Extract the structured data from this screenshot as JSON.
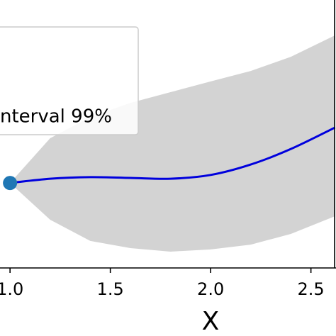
{
  "chart_data": {
    "type": "line",
    "x": [
      1.0,
      1.2,
      1.4,
      1.6,
      1.8,
      2.0,
      2.2,
      2.4,
      2.62
    ],
    "mean": {
      "color": "#0000dd",
      "values": [
        3.17,
        3.33,
        3.39,
        3.36,
        3.33,
        3.47,
        3.86,
        4.44,
        5.24
      ]
    },
    "band": {
      "color": "#d3d3d3",
      "upper": [
        3.17,
        4.84,
        5.63,
        6.16,
        6.56,
        6.96,
        7.35,
        7.88,
        8.68
      ],
      "lower": [
        3.17,
        1.8,
        1.01,
        0.74,
        0.61,
        0.69,
        0.87,
        1.27,
        1.93
      ]
    },
    "points": {
      "color": "#1f77b4",
      "x": [
        1.0
      ],
      "values": [
        3.17
      ]
    },
    "legend_text": "nterval 99%",
    "xlabel": "X",
    "xlim": [
      0.95,
      2.625
    ],
    "ylim": [
      0,
      10
    ],
    "xticks": [
      {
        "value": 1.0,
        "label": "1.0"
      },
      1.5,
      {
        "value": 2.0,
        "label": "2.0"
      },
      2.5
    ]
  }
}
